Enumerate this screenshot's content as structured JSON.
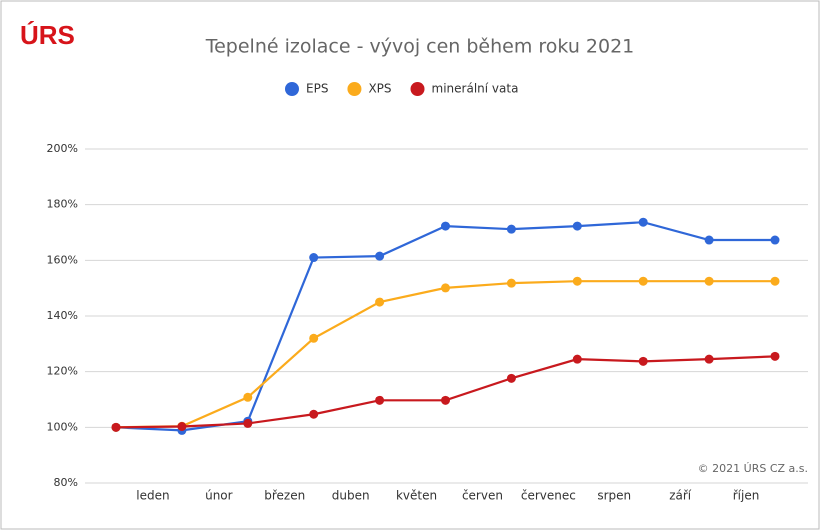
{
  "logo": "ÚRS",
  "copyright": "© 2021 ÚRS CZ a.s.",
  "chart_data": {
    "type": "line",
    "title": "Tepelné izolace - vývoj cen během roku 2021",
    "categories": [
      null,
      "leden",
      "únor",
      "březen",
      "duben",
      "květen",
      "červen",
      "červenec",
      "srpen",
      "září",
      "říjen"
    ],
    "series": [
      {
        "name": "EPS",
        "color": "#2f67d8",
        "values": [
          100,
          98.9,
          102.2,
          161,
          161.5,
          172.3,
          171.2,
          172.3,
          173.7,
          167.3,
          167.3
        ]
      },
      {
        "name": "XPS",
        "color": "#fbab1c",
        "values": [
          100,
          100.4,
          110.8,
          132,
          145,
          150.1,
          151.8,
          152.5,
          152.5,
          152.5,
          152.5
        ]
      },
      {
        "name": "minerální vata",
        "color": "#c8191e",
        "values": [
          100,
          100.3,
          101.4,
          104.7,
          109.7,
          109.7,
          117.6,
          124.5,
          123.7,
          124.5,
          125.5
        ]
      }
    ],
    "ylim": [
      80,
      200
    ],
    "yticks": [
      {
        "value": 80,
        "label": "80%"
      },
      {
        "value": 100,
        "label": "100%"
      },
      {
        "value": 120,
        "label": "120%"
      },
      {
        "value": 140,
        "label": "140%"
      },
      {
        "value": 160,
        "label": "160%"
      },
      {
        "value": 180,
        "label": "180%"
      },
      {
        "value": 200,
        "label": "200%"
      }
    ],
    "grid": true,
    "legend": "top"
  }
}
